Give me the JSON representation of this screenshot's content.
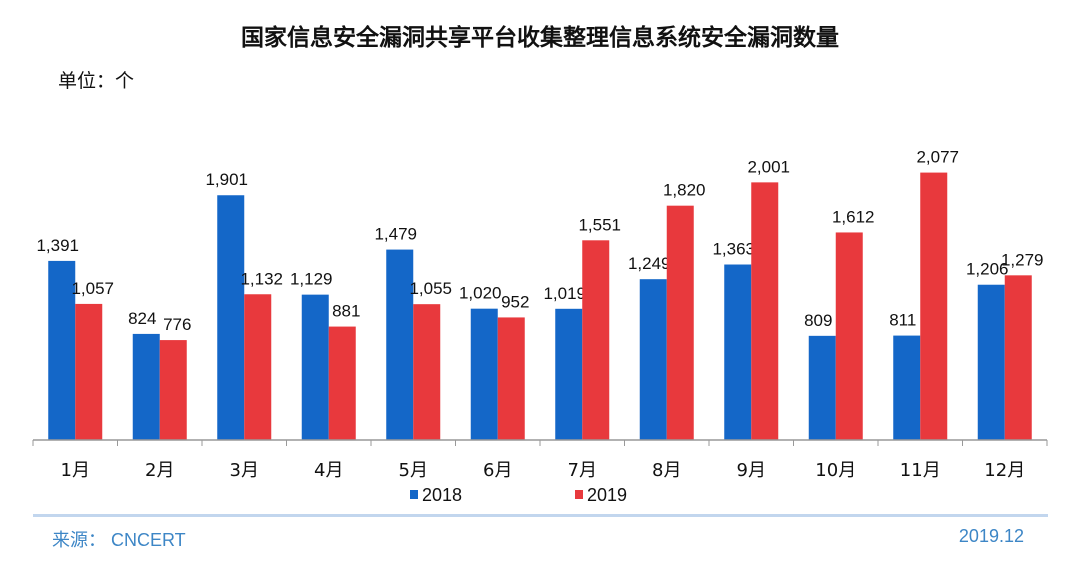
{
  "chart_data": {
    "type": "bar",
    "title": "国家信息安全漏洞共享平台收集整理信息系统安全漏洞数量",
    "unit_label": "单位：个",
    "categories": [
      "1月",
      "2月",
      "3月",
      "4月",
      "5月",
      "6月",
      "7月",
      "8月",
      "9月",
      "10月",
      "11月",
      "12月"
    ],
    "series": [
      {
        "name": "2018",
        "color": "#1467c8",
        "values": [
          1391,
          824,
          1901,
          1129,
          1479,
          1020,
          1019,
          1249,
          1363,
          809,
          811,
          1206
        ]
      },
      {
        "name": "2019",
        "color": "#e8393d",
        "values": [
          1057,
          776,
          1132,
          881,
          1055,
          952,
          1551,
          1820,
          2001,
          1612,
          2077,
          1279
        ]
      }
    ],
    "ylim": [
      0,
      2400
    ],
    "grid": false,
    "legend_position": "bottom",
    "data_labels": true
  },
  "footer": {
    "source": "来源： CNCERT",
    "date": "2019.12"
  }
}
